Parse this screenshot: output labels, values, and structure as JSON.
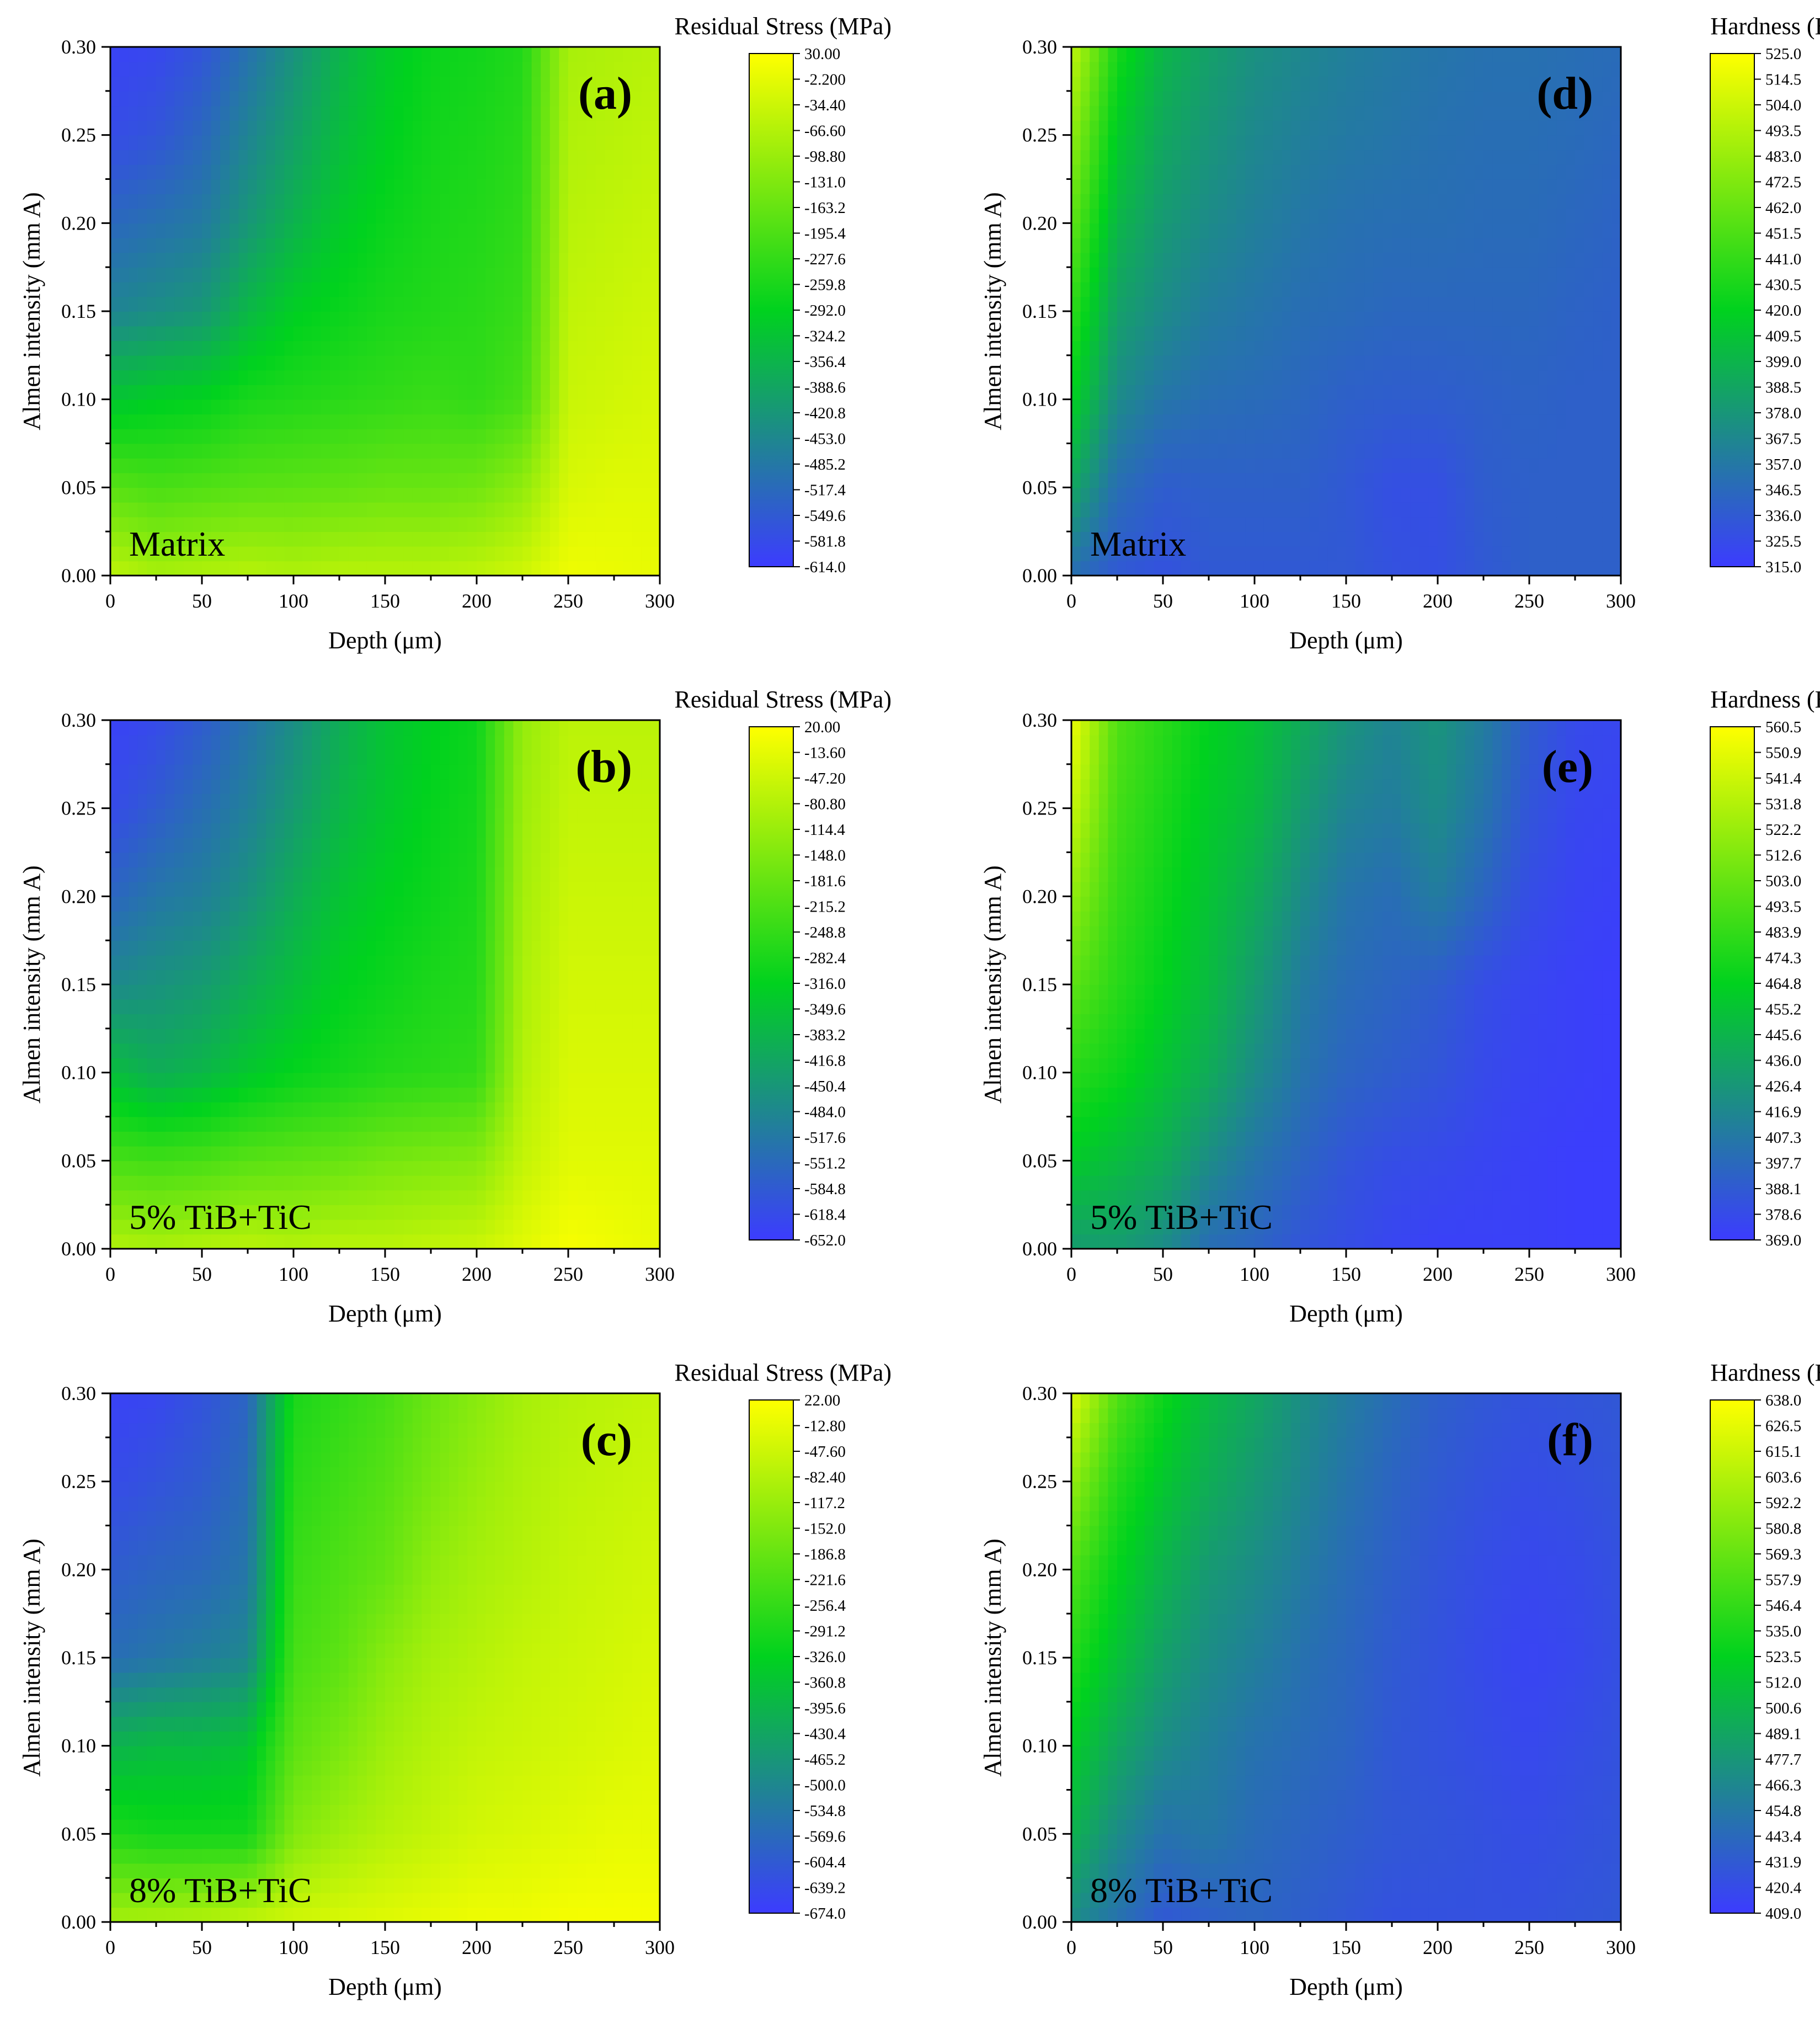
{
  "figure": {
    "colors": {
      "low": "#3c3cff",
      "mid": "#00d21e",
      "high": "#ffff00",
      "axis": "#000000"
    },
    "xlabel": "Depth (μm)",
    "ylabel": "Almen intensity (mm A)",
    "x_ticks": [
      "0",
      "50",
      "100",
      "150",
      "200",
      "250",
      "300"
    ],
    "y_ticks": [
      "0.00",
      "0.05",
      "0.10",
      "0.15",
      "0.20",
      "0.25",
      "0.30"
    ]
  },
  "chart_data": [
    {
      "type": "heatmap",
      "panel": "(a)",
      "sample": "Matrix",
      "quantity": "Residual Stress (MPa)",
      "xlim": [
        0,
        300
      ],
      "ylim": [
        0,
        0.3
      ],
      "colorbar": {
        "labels": [
          "30.00",
          "-2.200",
          "-34.40",
          "-66.60",
          "-98.80",
          "-131.0",
          "-163.2",
          "-195.4",
          "-227.6",
          "-259.8",
          "-292.0",
          "-324.2",
          "-356.4",
          "-388.6",
          "-420.8",
          "-453.0",
          "-485.2",
          "-517.4",
          "-549.6",
          "-581.8",
          "-614.0"
        ],
        "max": 30,
        "min": -614
      },
      "x": [
        0,
        25,
        50,
        75,
        100,
        125,
        150,
        175,
        200,
        225,
        250,
        275,
        300
      ],
      "y": [
        0,
        0.05,
        0.1,
        0.15,
        0.2,
        0.25,
        0.3
      ],
      "z": [
        [
          -50,
          -80,
          -70,
          -60,
          -70,
          -60,
          -60,
          -60,
          -50,
          -30,
          10,
          5,
          0
        ],
        [
          -180,
          -200,
          -190,
          -180,
          -175,
          -170,
          -160,
          -160,
          -150,
          -110,
          -20,
          -10,
          -10
        ],
        [
          -320,
          -300,
          -290,
          -260,
          -250,
          -240,
          -230,
          -220,
          -230,
          -200,
          -40,
          -30,
          -20
        ],
        [
          -460,
          -440,
          -420,
          -350,
          -300,
          -280,
          -260,
          -250,
          -240,
          -220,
          -50,
          -40,
          -30
        ],
        [
          -520,
          -500,
          -480,
          -420,
          -360,
          -310,
          -280,
          -260,
          -250,
          -230,
          -60,
          -50,
          -40
        ],
        [
          -580,
          -560,
          -520,
          -460,
          -400,
          -340,
          -300,
          -270,
          -260,
          -240,
          -70,
          -60,
          -50
        ],
        [
          -600,
          -590,
          -560,
          -500,
          -430,
          -360,
          -310,
          -280,
          -270,
          -250,
          -80,
          -70,
          -60
        ]
      ]
    },
    {
      "type": "heatmap",
      "panel": "(b)",
      "sample": "5% TiB+TiC",
      "quantity": "Residual Stress (MPa)",
      "xlim": [
        0,
        300
      ],
      "ylim": [
        0,
        0.3
      ],
      "colorbar": {
        "labels": [
          "20.00",
          "-13.60",
          "-47.20",
          "-80.80",
          "-114.4",
          "-148.0",
          "-181.6",
          "-215.2",
          "-248.8",
          "-282.4",
          "-316.0",
          "-349.6",
          "-383.2",
          "-416.8",
          "-450.4",
          "-484.0",
          "-517.6",
          "-551.2",
          "-584.8",
          "-618.4",
          "-652.0"
        ],
        "max": 20,
        "min": -652
      },
      "x": [
        0,
        25,
        50,
        75,
        100,
        125,
        150,
        175,
        200,
        225,
        250,
        275,
        300
      ],
      "y": [
        0,
        0.05,
        0.1,
        0.15,
        0.2,
        0.25,
        0.3
      ],
      "z": [
        [
          -80,
          -90,
          -80,
          -70,
          -80,
          -70,
          -70,
          -60,
          -50,
          -20,
          10,
          0,
          -10
        ],
        [
          -220,
          -230,
          -220,
          -200,
          -190,
          -180,
          -160,
          -150,
          -140,
          -60,
          -20,
          -20,
          -20
        ],
        [
          -360,
          -400,
          -380,
          -340,
          -310,
          -290,
          -270,
          -260,
          -250,
          -80,
          -30,
          -30,
          -30
        ],
        [
          -480,
          -460,
          -440,
          -400,
          -360,
          -320,
          -300,
          -280,
          -270,
          -90,
          -40,
          -40,
          -40
        ],
        [
          -560,
          -520,
          -500,
          -460,
          -400,
          -350,
          -320,
          -300,
          -280,
          -100,
          -50,
          -50,
          -50
        ],
        [
          -620,
          -580,
          -540,
          -500,
          -440,
          -380,
          -340,
          -310,
          -290,
          -110,
          -60,
          -60,
          -60
        ],
        [
          -640,
          -620,
          -580,
          -530,
          -470,
          -400,
          -350,
          -320,
          -300,
          -120,
          -70,
          -70,
          -70
        ]
      ]
    },
    {
      "type": "heatmap",
      "panel": "(c)",
      "sample": "8% TiB+TiC",
      "quantity": "Residual Stress (MPa)",
      "xlim": [
        0,
        300
      ],
      "ylim": [
        0,
        0.3
      ],
      "colorbar": {
        "labels": [
          "22.00",
          "-12.80",
          "-47.60",
          "-82.40",
          "-117.2",
          "-152.0",
          "-186.8",
          "-221.6",
          "-256.4",
          "-291.2",
          "-326.0",
          "-360.8",
          "-395.6",
          "-430.4",
          "-465.2",
          "-500.0",
          "-534.8",
          "-569.6",
          "-604.4",
          "-639.2",
          "-674.0"
        ],
        "max": 22,
        "min": -674
      },
      "x": [
        0,
        25,
        50,
        75,
        100,
        125,
        150,
        175,
        200,
        225,
        250,
        275,
        300
      ],
      "y": [
        0,
        0.05,
        0.1,
        0.15,
        0.2,
        0.25,
        0.3
      ],
      "z": [
        [
          -100,
          -90,
          -80,
          -60,
          -40,
          -30,
          -20,
          -10,
          0,
          0,
          10,
          10,
          10
        ],
        [
          -280,
          -300,
          -300,
          -300,
          -150,
          -110,
          -80,
          -60,
          -40,
          -30,
          -20,
          -10,
          -10
        ],
        [
          -400,
          -380,
          -380,
          -360,
          -200,
          -160,
          -110,
          -80,
          -60,
          -50,
          -40,
          -30,
          -20
        ],
        [
          -560,
          -540,
          -520,
          -500,
          -230,
          -200,
          -140,
          -100,
          -80,
          -60,
          -50,
          -40,
          -30
        ],
        [
          -600,
          -580,
          -570,
          -540,
          -250,
          -220,
          -190,
          -130,
          -100,
          -80,
          -60,
          -50,
          -40
        ],
        [
          -640,
          -620,
          -600,
          -560,
          -270,
          -240,
          -210,
          -160,
          -120,
          -90,
          -70,
          -60,
          -50
        ],
        [
          -660,
          -650,
          -620,
          -580,
          -290,
          -260,
          -230,
          -180,
          -140,
          -100,
          -80,
          -70,
          -60
        ]
      ]
    },
    {
      "type": "heatmap",
      "panel": "(d)",
      "sample": "Matrix",
      "quantity": "Hardness (Hv)",
      "xlim": [
        0,
        300
      ],
      "ylim": [
        0,
        0.3
      ],
      "colorbar": {
        "labels": [
          "525.0",
          "514.5",
          "504.0",
          "493.5",
          "483.0",
          "472.5",
          "462.0",
          "451.5",
          "441.0",
          "430.5",
          "420.0",
          "409.5",
          "399.0",
          "388.5",
          "378.0",
          "367.5",
          "357.0",
          "346.5",
          "336.0",
          "325.5",
          "315.0"
        ],
        "max": 525,
        "min": 315
      },
      "x": [
        0,
        25,
        50,
        75,
        100,
        125,
        150,
        175,
        200,
        225,
        250,
        275,
        300
      ],
      "y": [
        0,
        0.05,
        0.1,
        0.15,
        0.2,
        0.25,
        0.3
      ],
      "z": [
        [
          350,
          335,
          330,
          335,
          335,
          335,
          335,
          330,
          328,
          335,
          340,
          340,
          340
        ],
        [
          390,
          350,
          338,
          340,
          340,
          340,
          335,
          328,
          328,
          338,
          340,
          340,
          340
        ],
        [
          420,
          370,
          355,
          350,
          348,
          345,
          340,
          338,
          338,
          340,
          342,
          340,
          340
        ],
        [
          440,
          385,
          370,
          360,
          355,
          350,
          348,
          345,
          345,
          345,
          345,
          342,
          340
        ],
        [
          460,
          400,
          380,
          370,
          362,
          356,
          352,
          350,
          350,
          348,
          348,
          345,
          342
        ],
        [
          480,
          415,
          390,
          378,
          368,
          362,
          358,
          355,
          352,
          350,
          350,
          348,
          345
        ],
        [
          500,
          430,
          400,
          385,
          374,
          368,
          362,
          358,
          355,
          352,
          352,
          350,
          348
        ]
      ]
    },
    {
      "type": "heatmap",
      "panel": "(e)",
      "sample": "5% TiB+TiC",
      "quantity": "Hardness (Hv)",
      "xlim": [
        0,
        300
      ],
      "ylim": [
        0,
        0.3
      ],
      "colorbar": {
        "labels": [
          "560.5",
          "550.9",
          "541.4",
          "531.8",
          "522.2",
          "512.6",
          "503.0",
          "493.5",
          "483.9",
          "474.3",
          "464.8",
          "455.2",
          "445.6",
          "436.0",
          "426.4",
          "416.9",
          "407.3",
          "397.7",
          "388.1",
          "378.6",
          "369.0"
        ],
        "max": 560.5,
        "min": 369
      },
      "x": [
        0,
        25,
        50,
        75,
        100,
        125,
        150,
        175,
        200,
        225,
        250,
        275,
        300
      ],
      "y": [
        0,
        0.05,
        0.1,
        0.15,
        0.2,
        0.25,
        0.3
      ],
      "z": [
        [
          430,
          430,
          420,
          400,
          395,
          385,
          380,
          375,
          372,
          372,
          372,
          370,
          370
        ],
        [
          460,
          450,
          440,
          420,
          405,
          395,
          385,
          380,
          378,
          375,
          372,
          370,
          370
        ],
        [
          480,
          470,
          455,
          440,
          420,
          405,
          395,
          390,
          385,
          378,
          374,
          372,
          370
        ],
        [
          500,
          480,
          465,
          450,
          430,
          410,
          400,
          395,
          390,
          380,
          375,
          372,
          370
        ],
        [
          520,
          485,
          470,
          455,
          440,
          420,
          405,
          400,
          410,
          395,
          380,
          374,
          372
        ],
        [
          540,
          490,
          475,
          460,
          450,
          430,
          415,
          410,
          420,
          405,
          385,
          376,
          374
        ],
        [
          555,
          495,
          480,
          465,
          455,
          440,
          425,
          415,
          425,
          410,
          390,
          378,
          376
        ]
      ]
    },
    {
      "type": "heatmap",
      "panel": "(f)",
      "sample": "8% TiB+TiC",
      "quantity": "Hardness (Hv)",
      "xlim": [
        0,
        300
      ],
      "ylim": [
        0,
        0.3
      ],
      "colorbar": {
        "labels": [
          "638.0",
          "626.5",
          "615.1",
          "603.6",
          "592.2",
          "580.8",
          "569.3",
          "557.9",
          "546.4",
          "535.0",
          "523.5",
          "512.0",
          "500.6",
          "489.1",
          "477.7",
          "466.3",
          "454.8",
          "443.4",
          "431.9",
          "420.4",
          "409.0"
        ],
        "max": 638,
        "min": 409
      },
      "x": [
        0,
        25,
        50,
        75,
        100,
        125,
        150,
        175,
        200,
        225,
        250,
        275,
        300
      ],
      "y": [
        0,
        0.05,
        0.1,
        0.15,
        0.2,
        0.25,
        0.3
      ],
      "z": [
        [
          470,
          450,
          430,
          435,
          440,
          435,
          430,
          425,
          425,
          425,
          425,
          428,
          430
        ],
        [
          500,
          470,
          450,
          455,
          445,
          440,
          435,
          430,
          428,
          425,
          422,
          425,
          428
        ],
        [
          520,
          490,
          470,
          460,
          450,
          445,
          440,
          430,
          426,
          422,
          418,
          422,
          426
        ],
        [
          540,
          510,
          485,
          470,
          460,
          450,
          442,
          432,
          426,
          420,
          415,
          418,
          424
        ],
        [
          560,
          525,
          500,
          480,
          470,
          458,
          446,
          436,
          428,
          422,
          418,
          420,
          425
        ],
        [
          590,
          540,
          515,
          495,
          480,
          466,
          452,
          440,
          432,
          426,
          422,
          424,
          428
        ],
        [
          625,
          560,
          530,
          505,
          490,
          472,
          458,
          446,
          436,
          430,
          426,
          428,
          430
        ]
      ]
    }
  ]
}
